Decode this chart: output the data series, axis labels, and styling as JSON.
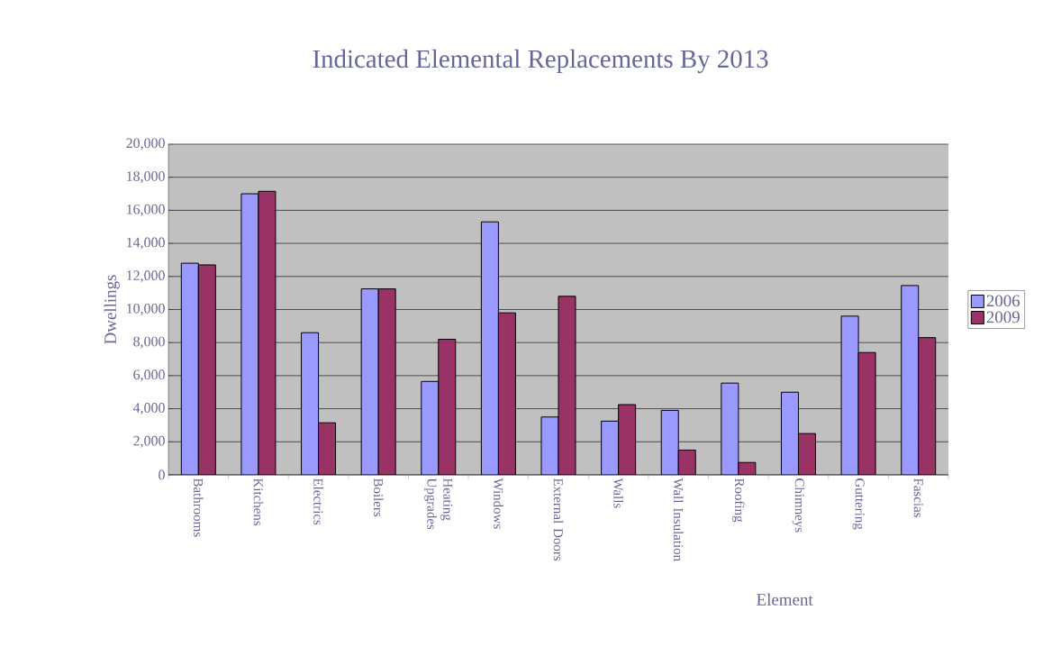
{
  "chart_data": {
    "type": "bar",
    "title": "Indicated Elemental Replacements By 2013",
    "xlabel": "Element",
    "ylabel": "Dwellings",
    "categories": [
      "Bathrooms",
      "Kitchens",
      "Electrics",
      "Boilers",
      "Heating Upgrades",
      "Windows",
      "External Doors",
      "Walls",
      "Wall Insulation",
      "Roofing",
      "Chimneys",
      "Guttering",
      "Fascias"
    ],
    "series": [
      {
        "name": "2006",
        "color": "#9999ff",
        "values": [
          12800,
          17000,
          8600,
          11250,
          5650,
          15300,
          3500,
          3250,
          3900,
          5550,
          5000,
          9600,
          11450
        ]
      },
      {
        "name": "2009",
        "color": "#993366",
        "values": [
          12700,
          17150,
          3150,
          11250,
          8200,
          9800,
          10800,
          4250,
          1500,
          750,
          2500,
          7400,
          8300
        ]
      }
    ],
    "ylim": [
      0,
      20000
    ],
    "yticks": [
      {
        "value": 0,
        "label": "0"
      },
      {
        "value": 2000,
        "label": "2,000"
      },
      {
        "value": 4000,
        "label": "4,000"
      },
      {
        "value": 6000,
        "label": "6,000"
      },
      {
        "value": 8000,
        "label": "8,000"
      },
      {
        "value": 10000,
        "label": "10,000"
      },
      {
        "value": 12000,
        "label": "12,000"
      },
      {
        "value": 14000,
        "label": "14,000"
      },
      {
        "value": 16000,
        "label": "16,000"
      },
      {
        "value": 18000,
        "label": "18,000"
      },
      {
        "value": 20000,
        "label": "20,000"
      }
    ],
    "grid": "y",
    "legend": "right"
  }
}
